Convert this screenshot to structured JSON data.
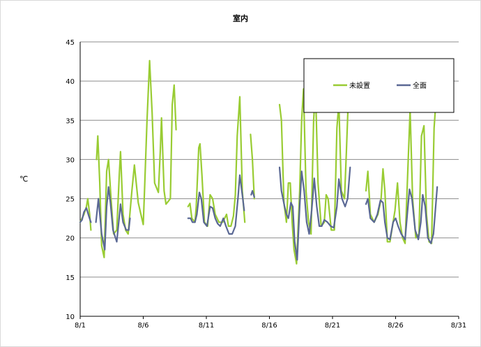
{
  "chart_data": {
    "type": "line",
    "title": "室内",
    "xlabel": "",
    "ylabel": "℃",
    "ylim": [
      10,
      45
    ],
    "yticks": [
      "10",
      "15",
      "20",
      "25",
      "30",
      "35",
      "40",
      "45"
    ],
    "xlim": [
      0,
      30
    ],
    "xticks": [
      {
        "x": 0,
        "label": "8/1"
      },
      {
        "x": 5,
        "label": "8/6"
      },
      {
        "x": 10,
        "label": "8/11"
      },
      {
        "x": 15,
        "label": "8/16"
      },
      {
        "x": 20,
        "label": "8/21"
      },
      {
        "x": 25,
        "label": "8/26"
      },
      {
        "x": 30,
        "label": "8/31"
      }
    ],
    "grid": "horizontal",
    "legend": "top-right",
    "series": [
      {
        "name": "未設置",
        "color": "#99cc33",
        "segments": [
          [
            [
              0.0,
              22.0
            ],
            [
              0.3,
              23.0
            ],
            [
              0.5,
              24.0
            ],
            [
              0.6,
              25.0
            ],
            [
              0.75,
              23.0
            ],
            [
              0.85,
              21.0
            ]
          ],
          [
            [
              1.3,
              30.0
            ],
            [
              1.4,
              33.0
            ],
            [
              1.55,
              27.0
            ],
            [
              1.7,
              19.0
            ],
            [
              1.9,
              17.5
            ],
            [
              2.1,
              28.5
            ],
            [
              2.25,
              30.0
            ],
            [
              2.45,
              25.0
            ],
            [
              2.65,
              20.5
            ],
            [
              2.9,
              21.0
            ],
            [
              3.1,
              28.0
            ],
            [
              3.2,
              31.0
            ],
            [
              3.4,
              23.0
            ],
            [
              3.6,
              21.0
            ],
            [
              3.8,
              20.5
            ],
            [
              4.1,
              26.0
            ],
            [
              4.3,
              29.3
            ],
            [
              4.6,
              24.5
            ],
            [
              5.0,
              21.7
            ],
            [
              5.1,
              26.0
            ],
            [
              5.3,
              35.0
            ],
            [
              5.5,
              42.6
            ],
            [
              5.7,
              36.0
            ],
            [
              5.9,
              27.0
            ],
            [
              6.2,
              25.8
            ],
            [
              6.35,
              31.0
            ],
            [
              6.45,
              35.3
            ],
            [
              6.65,
              26.0
            ],
            [
              6.8,
              24.3
            ],
            [
              7.15,
              25.0
            ],
            [
              7.3,
              37.0
            ],
            [
              7.45,
              39.5
            ],
            [
              7.6,
              33.8
            ]
          ],
          [
            [
              8.55,
              24.0
            ],
            [
              8.7,
              24.4
            ],
            [
              8.85,
              22.5
            ],
            [
              9.1,
              22.0
            ],
            [
              9.2,
              24.0
            ],
            [
              9.4,
              31.5
            ],
            [
              9.5,
              32.0
            ],
            [
              9.65,
              28.0
            ],
            [
              9.85,
              22.0
            ],
            [
              10.1,
              21.5
            ],
            [
              10.3,
              25.5
            ],
            [
              10.5,
              25.0
            ],
            [
              10.7,
              23.0
            ],
            [
              11.0,
              22.0
            ],
            [
              11.3,
              22.0
            ],
            [
              11.6,
              23.0
            ],
            [
              11.75,
              21.5
            ],
            [
              11.95,
              21.5
            ],
            [
              12.15,
              22.8
            ],
            [
              12.3,
              25.5
            ],
            [
              12.45,
              33.0
            ],
            [
              12.65,
              38.0
            ],
            [
              12.85,
              26.0
            ],
            [
              13.05,
              22.0
            ]
          ],
          [
            [
              13.5,
              33.2
            ],
            [
              13.65,
              30.0
            ],
            [
              13.8,
              25.0
            ]
          ],
          [
            [
              15.8,
              37.0
            ],
            [
              15.95,
              35.0
            ],
            [
              16.15,
              24.5
            ],
            [
              16.35,
              22.0
            ],
            [
              16.5,
              27.0
            ],
            [
              16.65,
              27.0
            ],
            [
              16.8,
              22.0
            ],
            [
              16.95,
              18.5
            ],
            [
              17.15,
              16.7
            ],
            [
              17.4,
              26.0
            ],
            [
              17.55,
              35.0
            ],
            [
              17.7,
              39.0
            ],
            [
              17.9,
              26.0
            ],
            [
              18.1,
              22.0
            ],
            [
              18.3,
              20.5
            ],
            [
              18.5,
              35.0
            ],
            [
              18.65,
              39.0
            ],
            [
              18.85,
              27.0
            ],
            [
              19.1,
              21.5
            ],
            [
              19.35,
              22.0
            ],
            [
              19.5,
              25.5
            ],
            [
              19.65,
              25.0
            ],
            [
              19.9,
              21.0
            ],
            [
              20.15,
              21.0
            ],
            [
              20.35,
              34.0
            ],
            [
              20.5,
              37.2
            ],
            [
              20.7,
              26.0
            ],
            [
              20.95,
              25.0
            ],
            [
              21.1,
              31.0
            ],
            [
              21.25,
              37.5
            ],
            [
              21.4,
              39.0
            ]
          ],
          [
            [
              22.65,
              26.0
            ],
            [
              22.8,
              28.5
            ],
            [
              23.0,
              23.0
            ],
            [
              23.3,
              22.0
            ],
            [
              23.6,
              23.0
            ],
            [
              23.85,
              25.0
            ],
            [
              24.0,
              28.8
            ],
            [
              24.15,
              26.0
            ],
            [
              24.35,
              19.5
            ],
            [
              24.55,
              19.5
            ],
            [
              24.75,
              21.5
            ],
            [
              24.95,
              23.5
            ],
            [
              25.15,
              27.0
            ],
            [
              25.35,
              22.0
            ],
            [
              25.55,
              20.0
            ],
            [
              25.75,
              19.3
            ],
            [
              26.0,
              30.0
            ],
            [
              26.15,
              36.3
            ],
            [
              26.35,
              25.0
            ],
            [
              26.6,
              20.0
            ],
            [
              26.85,
              20.5
            ],
            [
              27.05,
              33.0
            ],
            [
              27.25,
              34.3
            ],
            [
              27.45,
              23.0
            ],
            [
              27.65,
              19.5
            ],
            [
              27.85,
              19.3
            ],
            [
              28.05,
              34.0
            ],
            [
              28.2,
              37.5
            ],
            [
              28.3,
              37.7
            ]
          ]
        ]
      },
      {
        "name": "全面",
        "color": "#5a6894",
        "segments": [
          [
            [
              0.0,
              22.0
            ],
            [
              0.15,
              22.3
            ],
            [
              0.3,
              23.3
            ],
            [
              0.5,
              23.8
            ],
            [
              0.7,
              22.7
            ],
            [
              0.85,
              22.0
            ]
          ],
          [
            [
              1.25,
              22.0
            ],
            [
              1.45,
              25.0
            ],
            [
              1.7,
              20.5
            ],
            [
              1.95,
              18.5
            ],
            [
              2.1,
              24.0
            ],
            [
              2.25,
              26.5
            ],
            [
              2.4,
              24.5
            ],
            [
              2.6,
              21.0
            ],
            [
              2.9,
              19.5
            ],
            [
              3.2,
              24.3
            ],
            [
              3.4,
              22.0
            ],
            [
              3.65,
              21.0
            ],
            [
              3.85,
              21.0
            ],
            [
              3.95,
              22.5
            ]
          ],
          [
            [
              8.55,
              22.5
            ],
            [
              8.75,
              22.5
            ],
            [
              8.9,
              22.0
            ],
            [
              9.1,
              22.0
            ],
            [
              9.25,
              23.0
            ],
            [
              9.45,
              25.8
            ],
            [
              9.6,
              25.0
            ],
            [
              9.8,
              22.0
            ],
            [
              10.05,
              21.5
            ],
            [
              10.3,
              24.0
            ],
            [
              10.5,
              23.8
            ],
            [
              10.7,
              22.5
            ],
            [
              10.9,
              21.8
            ],
            [
              11.1,
              21.5
            ],
            [
              11.35,
              22.5
            ],
            [
              11.55,
              21.5
            ],
            [
              11.8,
              20.5
            ],
            [
              12.05,
              20.5
            ],
            [
              12.3,
              21.5
            ],
            [
              12.5,
              25.0
            ],
            [
              12.65,
              28.0
            ],
            [
              12.85,
              25.5
            ],
            [
              13.0,
              23.5
            ]
          ],
          [
            [
              13.55,
              25.5
            ],
            [
              13.65,
              26.0
            ],
            [
              13.8,
              25.2
            ]
          ],
          [
            [
              15.8,
              29.0
            ],
            [
              15.95,
              26.0
            ],
            [
              16.2,
              24.0
            ],
            [
              16.35,
              23.0
            ],
            [
              16.5,
              22.5
            ],
            [
              16.7,
              24.5
            ],
            [
              16.85,
              24.0
            ],
            [
              17.0,
              19.5
            ],
            [
              17.2,
              17.2
            ],
            [
              17.4,
              24.0
            ],
            [
              17.55,
              28.5
            ],
            [
              17.75,
              26.0
            ],
            [
              17.95,
              22.0
            ],
            [
              18.15,
              20.5
            ],
            [
              18.35,
              23.5
            ],
            [
              18.55,
              27.6
            ],
            [
              18.75,
              24.0
            ],
            [
              18.95,
              21.5
            ],
            [
              19.15,
              21.5
            ],
            [
              19.35,
              22.3
            ],
            [
              19.6,
              22.0
            ],
            [
              19.85,
              21.5
            ],
            [
              20.1,
              21.3
            ],
            [
              20.35,
              24.0
            ],
            [
              20.5,
              27.5
            ],
            [
              20.75,
              25.0
            ],
            [
              21.0,
              24.0
            ],
            [
              21.2,
              25.0
            ],
            [
              21.4,
              29.0
            ]
          ],
          [
            [
              22.65,
              24.3
            ],
            [
              22.8,
              25.0
            ],
            [
              23.0,
              22.5
            ],
            [
              23.3,
              22.0
            ],
            [
              23.55,
              23.0
            ],
            [
              23.8,
              24.8
            ],
            [
              24.0,
              24.5
            ],
            [
              24.15,
              22.0
            ],
            [
              24.35,
              20.0
            ],
            [
              24.55,
              19.8
            ],
            [
              24.8,
              22.0
            ],
            [
              25.0,
              22.5
            ],
            [
              25.2,
              21.5
            ],
            [
              25.45,
              20.5
            ],
            [
              25.75,
              19.8
            ],
            [
              25.95,
              23.5
            ],
            [
              26.1,
              26.2
            ],
            [
              26.3,
              25.0
            ],
            [
              26.55,
              21.0
            ],
            [
              26.8,
              19.8
            ],
            [
              27.0,
              22.0
            ],
            [
              27.15,
              25.5
            ],
            [
              27.35,
              24.0
            ],
            [
              27.55,
              20.0
            ],
            [
              27.8,
              19.3
            ],
            [
              28.0,
              20.5
            ],
            [
              28.3,
              26.5
            ]
          ]
        ]
      }
    ]
  }
}
